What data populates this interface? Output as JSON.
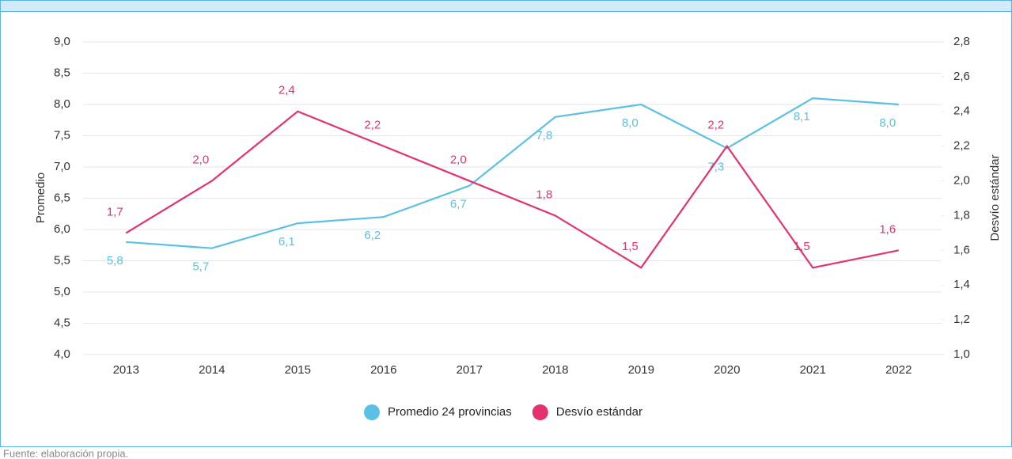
{
  "chart_data": {
    "type": "line",
    "categories": [
      "2013",
      "2014",
      "2015",
      "2016",
      "2017",
      "2018",
      "2019",
      "2020",
      "2021",
      "2022"
    ],
    "series": [
      {
        "name": "Promedio 24 provincias",
        "color": "#5bc0e5",
        "axis": "y",
        "values": [
          5.8,
          5.7,
          6.1,
          6.2,
          6.7,
          7.8,
          8.0,
          7.3,
          8.1,
          8.0
        ],
        "value_labels": [
          "5,8",
          "5,7",
          "6,1",
          "6,2",
          "6,7",
          "7,8",
          "8,0",
          "7,3",
          "8,1",
          "8,0"
        ]
      },
      {
        "name": "Desvío estándar",
        "color": "#e5316f",
        "axis": "y2",
        "values": [
          1.7,
          2.0,
          2.4,
          2.2,
          2.0,
          1.8,
          1.5,
          2.2,
          1.5,
          1.6
        ],
        "value_labels": [
          "1,7",
          "2,0",
          "2,4",
          "2,2",
          "2,0",
          "1,8",
          "1,5",
          "2,2",
          "1,5",
          "1,6"
        ]
      }
    ],
    "ylabel": "Promedio",
    "y2label": "Desvío estándar",
    "ylim": [
      4,
      9
    ],
    "yticks": [
      {
        "value": 4,
        "label": "4,0"
      },
      {
        "value": 4.5,
        "label": "4,5"
      },
      {
        "value": 5,
        "label": "5,0"
      },
      {
        "value": 5.5,
        "label": "5,5"
      },
      {
        "value": 6,
        "label": "6,0"
      },
      {
        "value": 6.5,
        "label": "6,5"
      },
      {
        "value": 7,
        "label": "7,0"
      },
      {
        "value": 7.5,
        "label": "7,5"
      },
      {
        "value": 8,
        "label": "8,0"
      },
      {
        "value": 8.5,
        "label": "8,5"
      },
      {
        "value": 9,
        "label": "9,0"
      }
    ],
    "y2lim": [
      1,
      2.8
    ],
    "y2ticks": [
      {
        "value": 1,
        "label": "1,0"
      },
      {
        "value": 1.2,
        "label": "1,2"
      },
      {
        "value": 1.4,
        "label": "1,4"
      },
      {
        "value": 1.6,
        "label": "1,6"
      },
      {
        "value": 1.8,
        "label": "1,8"
      },
      {
        "value": 2,
        "label": "2,0"
      },
      {
        "value": 2.2,
        "label": "2,2"
      },
      {
        "value": 2.4,
        "label": "2,4"
      },
      {
        "value": 2.6,
        "label": "2,6"
      },
      {
        "value": 2.8,
        "label": "2,8"
      }
    ],
    "grid": true,
    "legend": "bottom",
    "source": "Fuente: elaboración propia."
  }
}
